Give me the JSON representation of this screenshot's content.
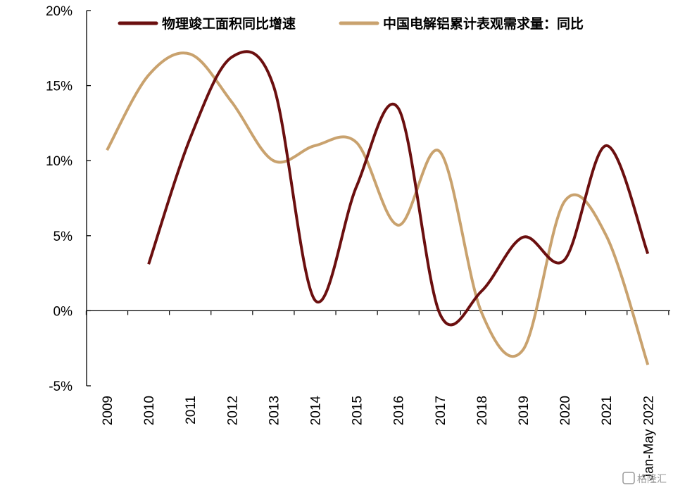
{
  "chart_data": {
    "type": "line",
    "x": [
      "2009",
      "2010",
      "2011",
      "2012",
      "2013",
      "2014",
      "2015",
      "2016",
      "2017",
      "2018",
      "2019",
      "2020",
      "2021",
      "Jan-May 2022"
    ],
    "ylim": [
      -5,
      20
    ],
    "yticks": [
      "20%",
      "15%",
      "10%",
      "5%",
      "0%",
      "-5%"
    ],
    "ytick_values": [
      20,
      15,
      10,
      5,
      0,
      -5
    ],
    "grid": false,
    "legend_position": "top",
    "series": [
      {
        "name": "物理竣工面积同比增速",
        "color": "#6b0f0f",
        "values": [
          null,
          3.1,
          11.5,
          16.9,
          15.0,
          0.7,
          8.3,
          13.5,
          -0.2,
          1.3,
          4.9,
          3.4,
          11.0,
          3.8
        ]
      },
      {
        "name": "中国电解铝累计表观需求量：同比",
        "color": "#c9a26e",
        "values": [
          10.7,
          15.7,
          17.1,
          13.9,
          10.0,
          11.0,
          11.2,
          5.7,
          10.6,
          -0.1,
          -2.6,
          7.3,
          5.0,
          -3.6
        ]
      }
    ]
  },
  "watermark": "格隆汇"
}
